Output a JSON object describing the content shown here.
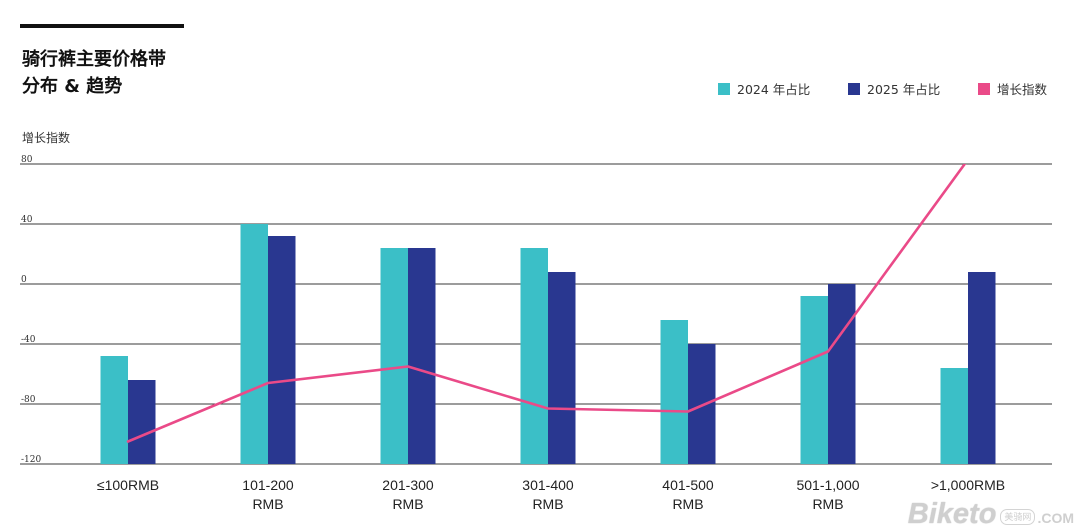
{
  "chart_data": {
    "type": "bar",
    "title": [
      "骑行裤主要价格带",
      "分布 & 趋势"
    ],
    "ylabel": "增长指数",
    "ylim": [
      -120,
      80
    ],
    "yticks": [
      80,
      40,
      0,
      -40,
      -80,
      -120
    ],
    "grid": true,
    "legend": "top-right",
    "bar_baseline": -120,
    "categories": [
      "≤100RMB",
      "101-200\nRMB",
      "201-300\nRMB",
      "301-400\nRMB",
      "401-500\nRMB",
      "501-1,000\nRMB",
      ">1,000RMB"
    ],
    "series": [
      {
        "name": "2024 年占比",
        "type": "bar",
        "color": "#3bbfc7",
        "values": [
          -48,
          40,
          24,
          24,
          -24,
          -8,
          -56
        ]
      },
      {
        "name": "2025 年占比",
        "type": "bar",
        "color": "#293790",
        "values": [
          -64,
          32,
          24,
          8,
          -40,
          0,
          8
        ]
      },
      {
        "name": "增长指数",
        "type": "line",
        "color": "#ea4a88",
        "values": [
          -105,
          -66,
          -55,
          -83,
          -85,
          -45,
          83
        ]
      }
    ]
  },
  "watermark": {
    "brand": "Biketo",
    "sub": "美骑网",
    "domain": ".COM"
  }
}
